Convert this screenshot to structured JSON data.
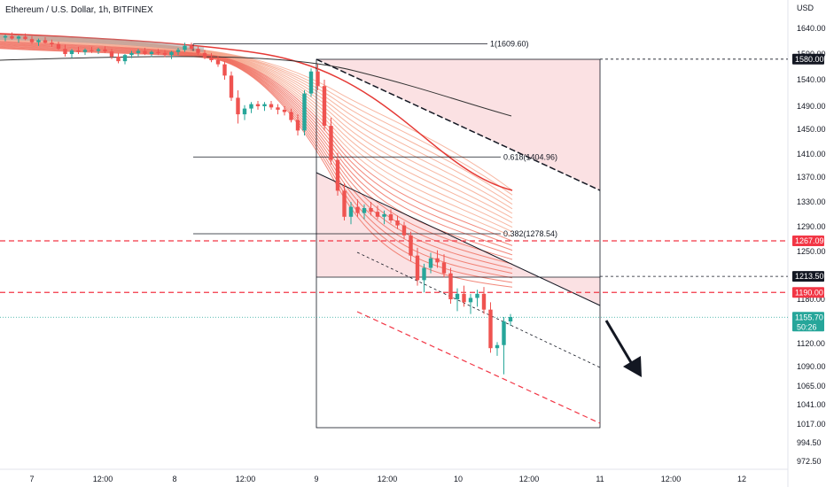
{
  "header": {
    "title": "Ethereum / U.S. Dollar, 1h, BITFINEX"
  },
  "colors": {
    "up": "#26a69a",
    "down": "#ef5350",
    "red_line": "#f23645",
    "tag_red": "#f23645",
    "tag_black": "#131722",
    "tag_teal": "#26a69a",
    "zone_fill": "#f8c8cc"
  },
  "chart_data": {
    "type": "candlestick",
    "title": "Ethereum / U.S. Dollar, 1h, BITFINEX",
    "y_axis_label": "USD",
    "y_ticks": [
      1640.0,
      1590.0,
      1540.0,
      1490.0,
      1450.0,
      1410.0,
      1370.0,
      1330.0,
      1290.0,
      1250.0,
      1180.0,
      1120.0,
      1090.0,
      1065.0,
      1041.0,
      1017.0,
      994.5,
      972.5
    ],
    "x_ticks": [
      "7",
      "12:00",
      "8",
      "12:00",
      "9",
      "12:00",
      "10",
      "12:00",
      "11",
      "12:00",
      "12"
    ],
    "price_tags": [
      {
        "label": "1580.00",
        "value": 1580.0,
        "style": "black"
      },
      {
        "label": "1267.09",
        "value": 1267.09,
        "style": "red"
      },
      {
        "label": "1213.50",
        "value": 1213.5,
        "style": "black"
      },
      {
        "label": "1190.00",
        "value": 1190.0,
        "style": "red"
      },
      {
        "label": "1155.70",
        "value": 1155.7,
        "style": "teal",
        "sublabel": "50:26"
      }
    ],
    "fib_levels": [
      {
        "label": "1(1609.60)",
        "value": 1609.6
      },
      {
        "label": "0.618(1404.96)",
        "value": 1404.96
      },
      {
        "label": "0.382(1278.54)",
        "value": 1278.54
      }
    ],
    "candles": [
      [
        1622,
        1628,
        1615,
        1625
      ],
      [
        1625,
        1632,
        1618,
        1620
      ],
      [
        1620,
        1626,
        1612,
        1624
      ],
      [
        1624,
        1630,
        1617,
        1619
      ],
      [
        1619,
        1625,
        1610,
        1613
      ],
      [
        1613,
        1620,
        1606,
        1617
      ],
      [
        1617,
        1623,
        1610,
        1612
      ],
      [
        1612,
        1618,
        1604,
        1609
      ],
      [
        1609,
        1614,
        1598,
        1600
      ],
      [
        1600,
        1608,
        1585,
        1590
      ],
      [
        1590,
        1600,
        1582,
        1597
      ],
      [
        1597,
        1604,
        1590,
        1594
      ],
      [
        1594,
        1601,
        1588,
        1598
      ],
      [
        1598,
        1604,
        1592,
        1596
      ],
      [
        1596,
        1602,
        1590,
        1599
      ],
      [
        1599,
        1605,
        1592,
        1595
      ],
      [
        1595,
        1600,
        1580,
        1585
      ],
      [
        1585,
        1592,
        1572,
        1576
      ],
      [
        1576,
        1590,
        1570,
        1588
      ],
      [
        1588,
        1596,
        1582,
        1592
      ],
      [
        1592,
        1600,
        1586,
        1596
      ],
      [
        1596,
        1602,
        1588,
        1590
      ],
      [
        1590,
        1597,
        1584,
        1594
      ],
      [
        1594,
        1600,
        1588,
        1592
      ],
      [
        1592,
        1598,
        1584,
        1588
      ],
      [
        1588,
        1596,
        1580,
        1594
      ],
      [
        1594,
        1602,
        1588,
        1598
      ],
      [
        1598,
        1612,
        1594,
        1606
      ],
      [
        1606,
        1612,
        1596,
        1600
      ],
      [
        1600,
        1606,
        1588,
        1592
      ],
      [
        1592,
        1598,
        1580,
        1584
      ],
      [
        1584,
        1592,
        1574,
        1578
      ],
      [
        1578,
        1586,
        1565,
        1570
      ],
      [
        1570,
        1576,
        1540,
        1548
      ],
      [
        1548,
        1556,
        1500,
        1506
      ],
      [
        1506,
        1520,
        1460,
        1476
      ],
      [
        1476,
        1492,
        1466,
        1486
      ],
      [
        1486,
        1498,
        1478,
        1494
      ],
      [
        1494,
        1500,
        1484,
        1490
      ],
      [
        1490,
        1498,
        1482,
        1494
      ],
      [
        1494,
        1500,
        1484,
        1488
      ],
      [
        1488,
        1494,
        1476,
        1484
      ],
      [
        1484,
        1490,
        1474,
        1480
      ],
      [
        1480,
        1486,
        1462,
        1466
      ],
      [
        1466,
        1476,
        1440,
        1448
      ],
      [
        1448,
        1520,
        1440,
        1514
      ],
      [
        1514,
        1562,
        1508,
        1556
      ],
      [
        1556,
        1570,
        1520,
        1528
      ],
      [
        1528,
        1540,
        1448,
        1456
      ],
      [
        1456,
        1470,
        1392,
        1400
      ],
      [
        1400,
        1412,
        1340,
        1348
      ],
      [
        1348,
        1360,
        1300,
        1306
      ],
      [
        1306,
        1330,
        1294,
        1322
      ],
      [
        1322,
        1334,
        1306,
        1312
      ],
      [
        1312,
        1326,
        1302,
        1320
      ],
      [
        1320,
        1330,
        1308,
        1314
      ],
      [
        1314,
        1324,
        1302,
        1306
      ],
      [
        1306,
        1316,
        1294,
        1310
      ],
      [
        1310,
        1318,
        1296,
        1300
      ],
      [
        1300,
        1308,
        1286,
        1292
      ],
      [
        1292,
        1298,
        1270,
        1276
      ],
      [
        1276,
        1282,
        1236,
        1244
      ],
      [
        1244,
        1256,
        1200,
        1208
      ],
      [
        1208,
        1232,
        1190,
        1226
      ],
      [
        1226,
        1248,
        1218,
        1240
      ],
      [
        1240,
        1252,
        1226,
        1234
      ],
      [
        1234,
        1246,
        1212,
        1218
      ],
      [
        1218,
        1226,
        1174,
        1180
      ],
      [
        1180,
        1196,
        1164,
        1188
      ],
      [
        1188,
        1200,
        1170,
        1176
      ],
      [
        1176,
        1188,
        1160,
        1182
      ],
      [
        1182,
        1194,
        1170,
        1188
      ],
      [
        1188,
        1198,
        1160,
        1166
      ],
      [
        1166,
        1176,
        1108,
        1114
      ],
      [
        1114,
        1122,
        1104,
        1118
      ],
      [
        1118,
        1156,
        1080,
        1150
      ],
      [
        1150,
        1160,
        1144,
        1156
      ]
    ]
  }
}
